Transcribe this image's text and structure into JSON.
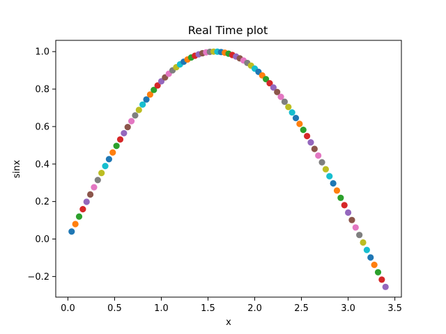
{
  "chart_data": {
    "type": "scatter",
    "title": "Real Time plot",
    "xlabel": "x",
    "ylabel": "sinx",
    "xlim": [
      -0.13,
      3.57
    ],
    "ylim": [
      -0.31,
      1.06
    ],
    "xticks": [
      0.0,
      0.5,
      1.0,
      1.5,
      2.0,
      2.5,
      3.0,
      3.5
    ],
    "xtick_labels": [
      "0.0",
      "0.5",
      "1.0",
      "1.5",
      "2.0",
      "2.5",
      "3.0",
      "3.5"
    ],
    "yticks": [
      -0.2,
      0.0,
      0.2,
      0.4,
      0.6,
      0.8,
      1.0
    ],
    "ytick_labels": [
      "−0.2",
      "0.0",
      "0.2",
      "0.4",
      "0.6",
      "0.8",
      "1.0"
    ],
    "grid": false,
    "x_start": 0.04,
    "x_step": 0.04,
    "count": 85,
    "function": "sin(x)",
    "marker_colors": [
      "#1f77b4",
      "#ff7f0e",
      "#2ca02c",
      "#d62728",
      "#9467bd",
      "#8c564b",
      "#e377c2",
      "#7f7f7f",
      "#bcbd22",
      "#17becf"
    ]
  }
}
